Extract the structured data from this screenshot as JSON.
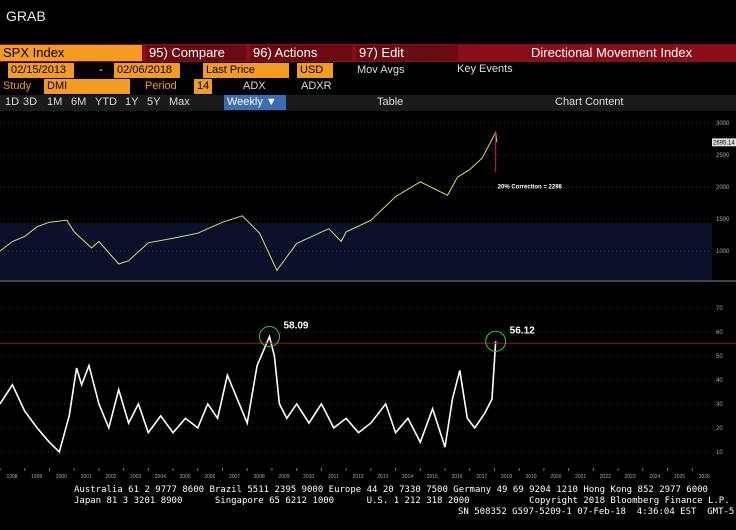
{
  "ui": {
    "window_title": "GRAB",
    "toolbar": {
      "ticker": "SPX Index",
      "compare": "95) Compare",
      "actions": "96) Actions",
      "edit": "97) Edit",
      "function": "Directional Movement Index"
    },
    "range": {
      "start": "02/15/2013",
      "dash": "-",
      "end": "02/06/2018",
      "price": "Last Price",
      "currency": "USD",
      "mov_avgs": "Mov Avgs",
      "key_events": "Key Events"
    },
    "study": {
      "label": "Study",
      "value": "DMI",
      "period_label": "Period",
      "period": "14",
      "adx": "ADX",
      "adxr": "ADXR"
    },
    "periods": [
      "1D",
      "3D",
      "1M",
      "6M",
      "YTD",
      "1Y",
      "5Y",
      "Max"
    ],
    "frequency": "Weekly ▼",
    "table": "Table",
    "chart_content": "Chart Content",
    "footer": [
      "Australia 61 2 9777 8600 Brazil 5511 2395 9000 Europe 44 20 7330 7500 Germany 49 69 9204 1210 Hong Kong 852 2977 6000",
      "Japan 81 3 3201 8900      Singapore 65 6212 1000      U.S. 1 212 318 2000           Copyright 2018 Bloomberg Finance L.P.",
      "SN 508352 G597-5209-1 07-Feb-18  4:36:04 EST  GMT-5:00"
    ]
  },
  "chart_data": [
    {
      "type": "line",
      "annotation": "20% Correction = 2298",
      "x": [
        1998,
        1998.5,
        1999,
        1999.5,
        2000,
        2000.7,
        2001,
        2001.7,
        2002,
        2002.8,
        2003.2,
        2004,
        2005,
        2006,
        2007,
        2007.8,
        2008.5,
        2009.2,
        2010,
        2011.3,
        2011.8,
        2012,
        2013,
        2014,
        2015,
        2016.1,
        2016.5,
        2017,
        2017.5,
        2018.05,
        2018.1
      ],
      "series": [
        {
          "name": "SPX Index",
          "color": "#c8e67a",
          "values": [
            1000,
            1150,
            1230,
            1380,
            1450,
            1480,
            1300,
            1050,
            1150,
            800,
            850,
            1130,
            1200,
            1280,
            1450,
            1550,
            1280,
            700,
            1120,
            1350,
            1150,
            1300,
            1480,
            1850,
            2080,
            1870,
            2150,
            2270,
            2450,
            2850,
            2695.14
          ]
        }
      ],
      "xlim": [
        1998,
        2026.8
      ],
      "ylim": [
        550,
        3090
      ],
      "yticks": [
        1000,
        1500,
        2000,
        2500,
        3000
      ]
    },
    {
      "type": "line",
      "x": [
        1998,
        1998.5,
        1999,
        1999.5,
        2000,
        2000.4,
        2000.8,
        2001.1,
        2001.3,
        2001.6,
        2002,
        2002.4,
        2002.8,
        2003.2,
        2003.6,
        2004,
        2004.5,
        2005,
        2005.5,
        2006,
        2006.4,
        2006.8,
        2007.2,
        2007.6,
        2008,
        2008.4,
        2008.9,
        2009.1,
        2009.3,
        2009.6,
        2010,
        2010.5,
        2011,
        2011.5,
        2012,
        2012.5,
        2013,
        2013.6,
        2014,
        2014.5,
        2015,
        2015.5,
        2016,
        2016.3,
        2016.6,
        2016.9,
        2017.2,
        2017.6,
        2017.9,
        2018.05
      ],
      "series": [
        {
          "name": "ADX",
          "color": "#ffffff",
          "values": [
            30,
            38,
            27,
            20,
            14,
            10,
            25,
            45,
            38,
            46,
            30,
            20,
            36,
            22,
            30,
            18,
            25,
            18,
            24,
            20,
            30,
            24,
            42,
            32,
            22,
            46,
            58.09,
            50,
            30,
            24,
            30,
            22,
            30,
            20,
            24,
            18,
            22,
            30,
            18,
            24,
            14,
            28,
            12,
            32,
            44,
            24,
            20,
            26,
            32,
            56.12
          ]
        }
      ],
      "peak_labels": [
        "58.09",
        "56.12"
      ],
      "xlim": [
        1998,
        2026.8
      ],
      "ylim": [
        3.3,
        80
      ],
      "yticks": [
        10,
        20,
        30,
        40,
        50,
        60,
        70
      ],
      "xticks": [
        1998,
        1999,
        2000,
        2001,
        2002,
        2003,
        2004,
        2005,
        2006,
        2007,
        2008,
        2009,
        2010,
        2011,
        2012,
        2013,
        2014,
        2015,
        2016,
        2017,
        2018,
        2019,
        2020,
        2021,
        2022,
        2023,
        2024,
        2025,
        2026
      ]
    }
  ]
}
